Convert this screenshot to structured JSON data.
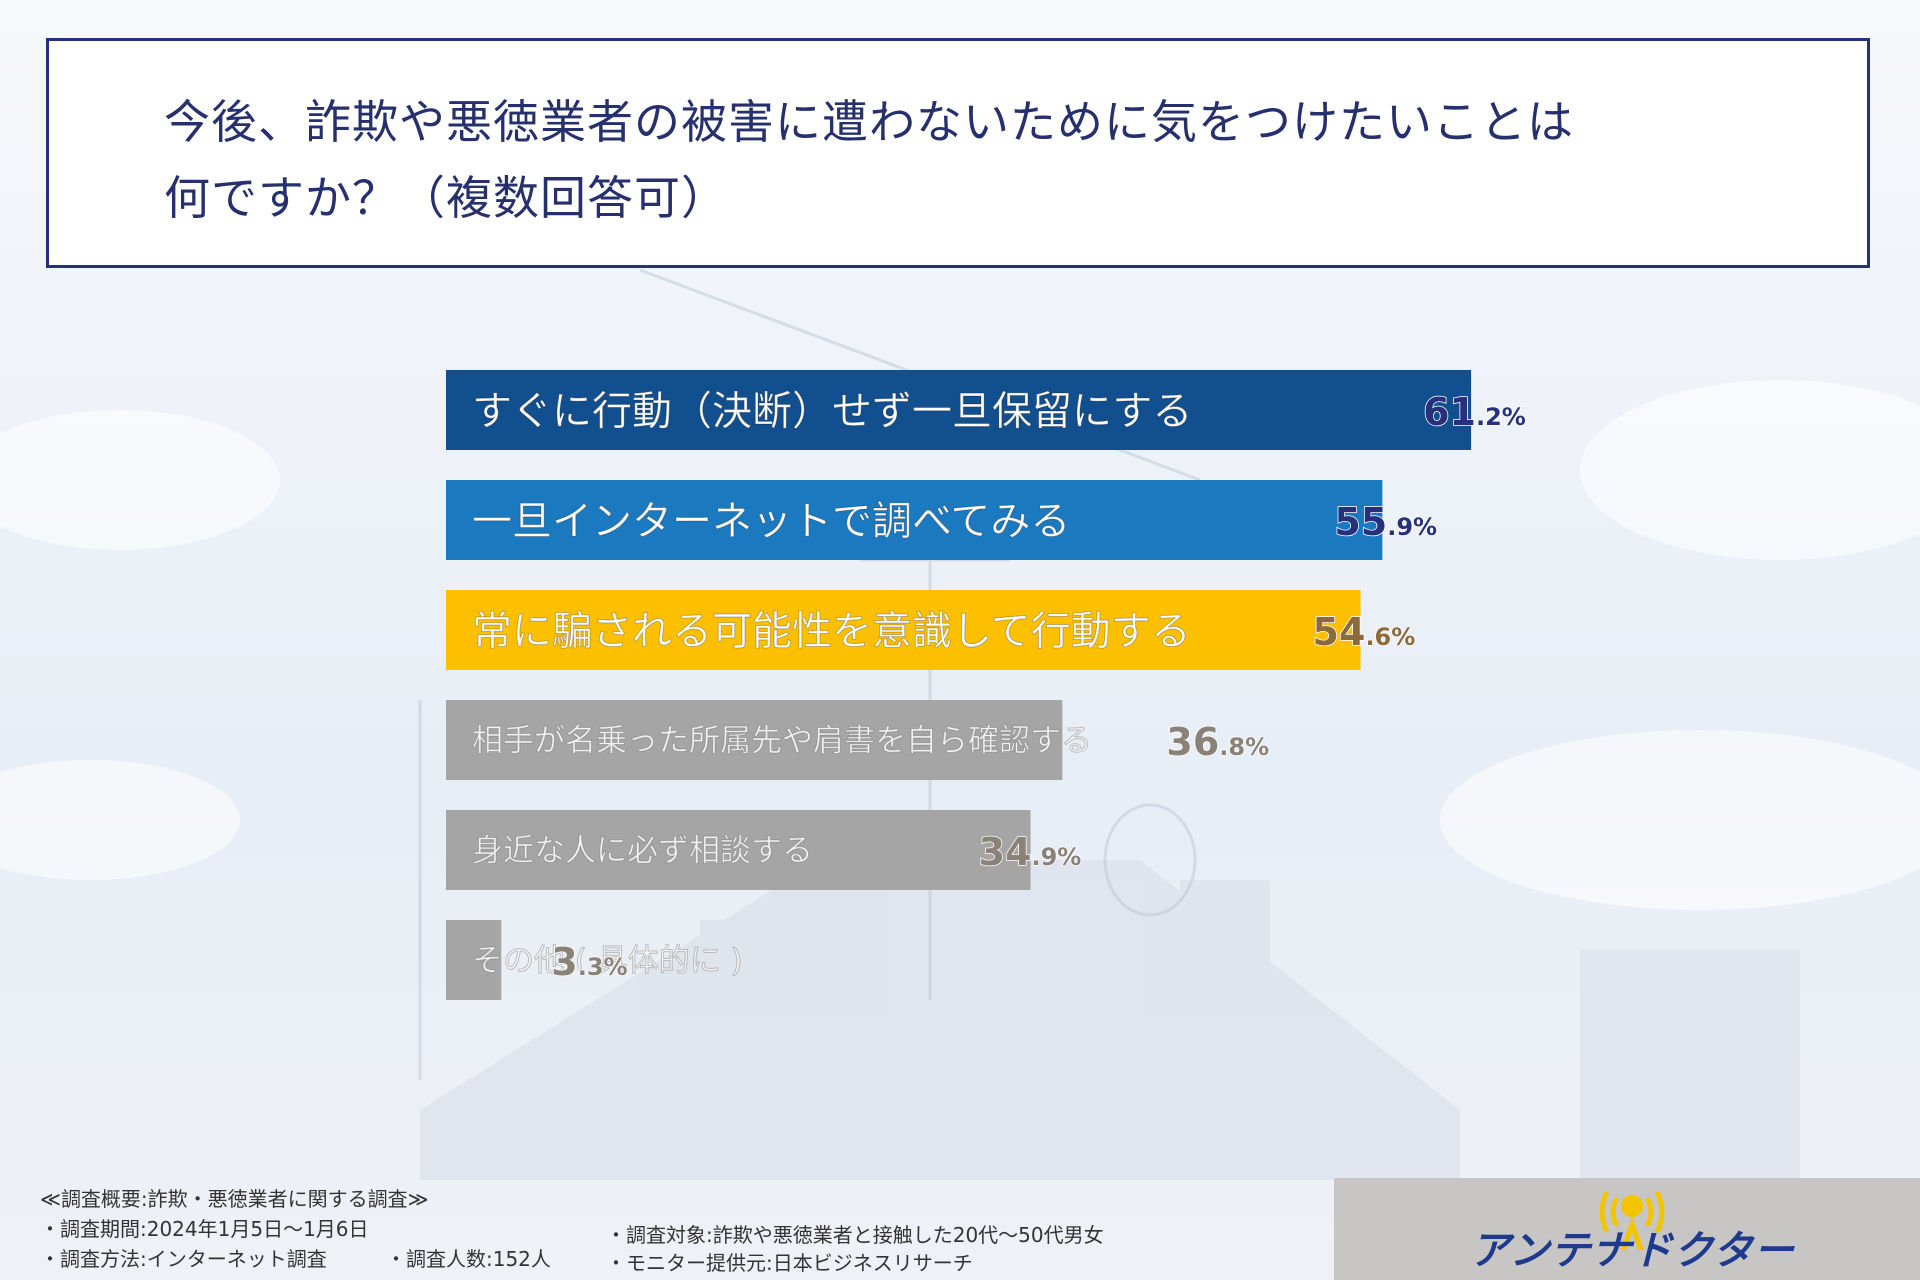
{
  "title": {
    "line1": "今後、詐欺や悪徳業者の被害に遭わないために気をつけたいことは",
    "line2": "何ですか？（複数回答可）"
  },
  "chart_data": {
    "type": "bar",
    "orientation": "horizontal",
    "unit": "%",
    "xlim": [
      0,
      100
    ],
    "grid": false,
    "categories": [
      "すぐに行動（決断）せず一旦保留にする",
      "一旦インターネットで調べてみる",
      "常に騙される可能性を意識して行動する",
      "相手が名乗った所属先や肩書を自ら確認する",
      "身近な人に必ず相談する",
      "その他 ( 具体的に )"
    ],
    "values": [
      61.2,
      55.9,
      54.6,
      36.8,
      34.9,
      3.3
    ],
    "value_labels": [
      {
        "int": "61",
        "dec": ".2%"
      },
      {
        "int": "55",
        "dec": ".9%"
      },
      {
        "int": "54",
        "dec": ".6%"
      },
      {
        "int": "36",
        "dec": ".8%"
      },
      {
        "int": "34",
        "dec": ".9%"
      },
      {
        "int": "3",
        "dec": ".3%"
      }
    ],
    "colors": [
      "#124f8e",
      "#1b79c0",
      "#fcc000",
      "#a5a5a5",
      "#a5a5a5",
      "#a5a5a5"
    ],
    "value_colors": [
      "#27307a",
      "#27307a",
      "#8c6a3b",
      "#8a8278",
      "#8a8278",
      "#8a8278"
    ]
  },
  "footer": {
    "overview": "≪調査概要:詐欺・悪徳業者に関する調査≫",
    "period": "・調査期間:2024年1月5日〜1月6日",
    "method": "・調査方法:インターネット調査",
    "count": "・調査人数:152人",
    "target": "・調査対象:詐欺や悪徳業者と接触した20代〜50代男女",
    "provider": "・モニター提供元:日本ビジネスリサーチ"
  },
  "logo": {
    "text": "アンテナドクター",
    "icon": "antenna-doctor-logo-icon"
  }
}
